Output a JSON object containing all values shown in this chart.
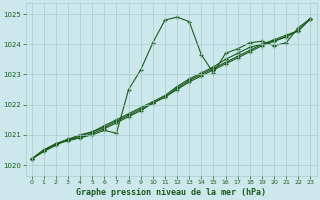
{
  "bg_color": "#cce8ec",
  "grid_color": "#a8cccc",
  "line_color": "#1a5c1a",
  "marker_color": "#1a5c1a",
  "xlabel": "Graphe pression niveau de la mer (hPa)",
  "xlabel_color": "#1a5c1a",
  "tick_color": "#1a5c1a",
  "xlim": [
    -0.5,
    23.5
  ],
  "ylim": [
    1019.65,
    1025.35
  ],
  "yticks": [
    1020,
    1021,
    1022,
    1023,
    1024,
    1025
  ],
  "xticks": [
    0,
    1,
    2,
    3,
    4,
    5,
    6,
    7,
    8,
    9,
    10,
    11,
    12,
    13,
    14,
    15,
    16,
    17,
    18,
    19,
    20,
    21,
    22,
    23
  ],
  "series1_x": [
    0,
    1,
    2,
    3,
    4,
    5,
    6,
    7,
    8,
    9,
    10,
    11,
    12,
    13,
    14,
    15,
    16,
    17,
    18,
    19,
    20,
    21,
    22,
    23
  ],
  "series1_y": [
    1020.2,
    1020.5,
    1020.7,
    1020.85,
    1020.9,
    1021.05,
    1021.2,
    1021.4,
    1021.6,
    1021.8,
    1022.05,
    1022.25,
    1022.5,
    1022.75,
    1022.95,
    1023.15,
    1023.35,
    1023.55,
    1023.75,
    1023.95,
    1024.1,
    1024.25,
    1024.45,
    1024.85
  ],
  "series2_x": [
    0,
    1,
    2,
    3,
    4,
    5,
    6,
    7,
    8,
    9,
    10,
    11,
    12,
    13,
    14,
    15,
    16,
    17,
    18,
    19,
    20,
    21,
    22,
    23
  ],
  "series2_y": [
    1020.2,
    1020.45,
    1020.65,
    1020.85,
    1021.0,
    1021.1,
    1021.25,
    1021.45,
    1021.65,
    1021.85,
    1022.05,
    1022.25,
    1022.55,
    1022.8,
    1023.0,
    1023.2,
    1023.4,
    1023.6,
    1023.8,
    1024.0,
    1024.1,
    1024.25,
    1024.45,
    1024.85
  ],
  "series3_x": [
    0,
    1,
    2,
    3,
    4,
    5,
    6,
    7,
    8,
    9,
    10,
    11,
    12,
    13,
    14,
    15,
    16,
    17,
    18,
    19,
    20,
    21,
    22,
    23
  ],
  "series3_y": [
    1020.2,
    1020.45,
    1020.7,
    1020.85,
    1020.95,
    1021.1,
    1021.3,
    1021.5,
    1021.7,
    1021.9,
    1022.1,
    1022.3,
    1022.6,
    1022.85,
    1023.05,
    1023.25,
    1023.5,
    1023.7,
    1023.9,
    1024.0,
    1024.15,
    1024.3,
    1024.45,
    1024.85
  ],
  "series4_x": [
    0,
    1,
    2,
    3,
    4,
    5,
    6,
    7,
    8,
    9,
    10,
    11,
    12,
    13,
    14,
    15,
    16,
    17,
    18,
    19,
    20,
    21,
    22,
    23
  ],
  "series4_y": [
    1020.2,
    1020.5,
    1020.7,
    1020.8,
    1020.9,
    1021.0,
    1021.15,
    1021.05,
    1022.5,
    1023.15,
    1024.05,
    1024.8,
    1024.9,
    1024.75,
    1023.65,
    1023.05,
    1023.7,
    1023.85,
    1024.05,
    1024.1,
    1023.95,
    1024.05,
    1024.55,
    1024.85
  ]
}
